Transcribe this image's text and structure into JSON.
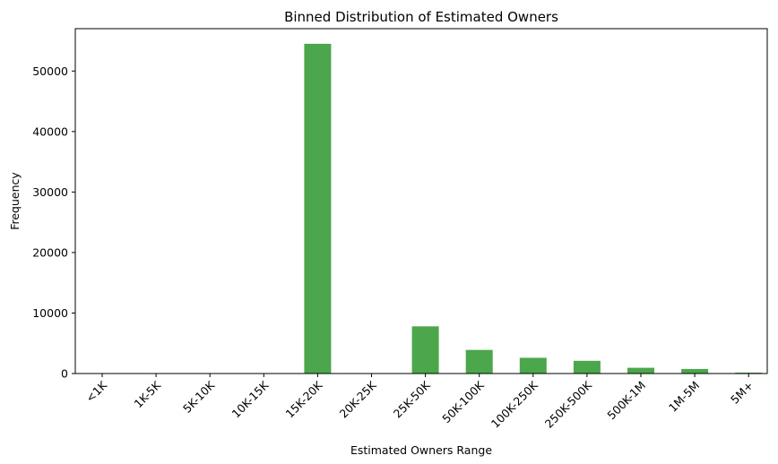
{
  "chart_data": {
    "type": "bar",
    "title": "Binned Distribution of Estimated Owners",
    "xlabel": "Estimated Owners Range",
    "ylabel": "Frequency",
    "categories": [
      "<1K",
      "1K-5K",
      "5K-10K",
      "10K-15K",
      "15K-20K",
      "20K-25K",
      "25K-50K",
      "50K-100K",
      "100K-250K",
      "250K-500K",
      "500K-1M",
      "1M-5M",
      "5M+"
    ],
    "values": [
      0,
      0,
      0,
      0,
      54500,
      0,
      7800,
      3900,
      2600,
      2100,
      950,
      750,
      150
    ],
    "ylim": [
      0,
      57000
    ],
    "yticks": [
      0,
      10000,
      20000,
      30000,
      40000,
      50000
    ],
    "bar_color": "#4ca64c",
    "grid": false,
    "xtick_rotation": 45
  }
}
